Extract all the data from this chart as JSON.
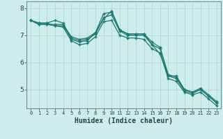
{
  "xlabel": "Humidex (Indice chaleur)",
  "ylabel": "",
  "background_color": "#ceecea",
  "grid_color": "#aed8d4",
  "line_color": "#1a7a6e",
  "xlim": [
    -0.5,
    23.5
  ],
  "ylim": [
    4.3,
    8.25
  ],
  "xticks": [
    0,
    1,
    2,
    3,
    4,
    5,
    6,
    7,
    8,
    9,
    10,
    11,
    12,
    13,
    14,
    15,
    16,
    17,
    18,
    19,
    20,
    21,
    22,
    23
  ],
  "yticks": [
    5,
    6,
    7,
    8
  ],
  "series": [
    [
      7.55,
      7.45,
      7.45,
      7.55,
      7.45,
      6.85,
      6.75,
      6.8,
      7.1,
      7.6,
      7.9,
      7.2,
      7.05,
      7.05,
      7.05,
      6.65,
      6.3,
      5.5,
      5.5,
      5.0,
      4.9,
      5.0,
      4.75,
      4.5
    ],
    [
      7.55,
      7.45,
      7.45,
      7.35,
      7.35,
      6.9,
      6.8,
      6.85,
      7.05,
      7.65,
      7.75,
      7.15,
      7.0,
      7.0,
      7.0,
      6.65,
      6.5,
      5.5,
      5.4,
      4.95,
      4.85,
      5.0,
      4.75,
      4.5
    ],
    [
      7.55,
      7.4,
      7.4,
      7.4,
      7.4,
      6.95,
      6.85,
      6.9,
      7.1,
      7.8,
      7.85,
      7.2,
      7.05,
      7.05,
      7.05,
      6.75,
      6.55,
      5.55,
      5.45,
      5.0,
      4.9,
      5.05,
      4.8,
      4.55
    ],
    [
      7.55,
      7.4,
      7.4,
      7.35,
      7.3,
      6.8,
      6.65,
      6.7,
      6.95,
      7.5,
      7.55,
      7.0,
      6.9,
      6.9,
      6.85,
      6.5,
      6.35,
      5.4,
      5.3,
      4.9,
      4.8,
      4.9,
      4.65,
      4.4
    ]
  ]
}
